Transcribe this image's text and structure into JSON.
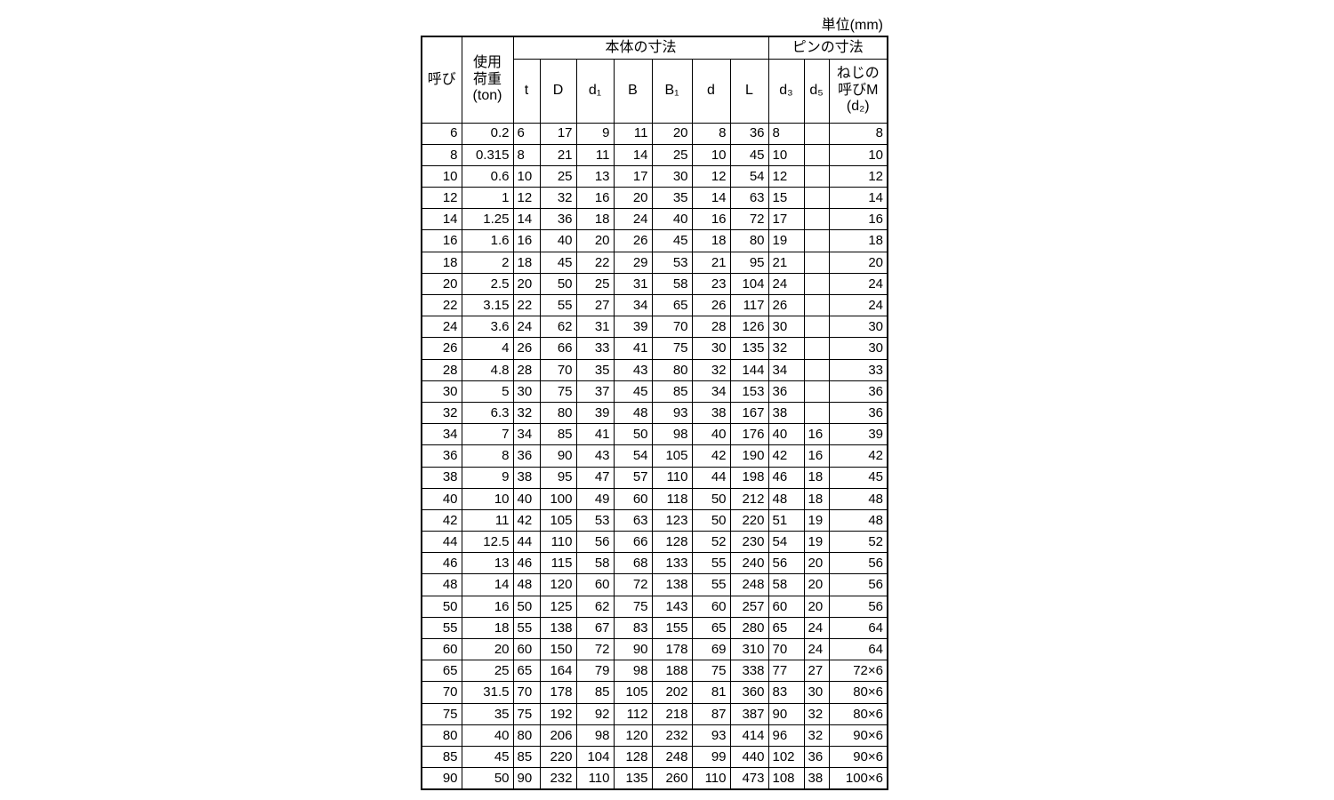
{
  "unit": "単位(mm)",
  "header": {
    "name": "呼び",
    "load": [
      "使用",
      "荷重",
      "(ton)"
    ],
    "body_group": "本体の寸法",
    "pin_group": "ピンの寸法",
    "body_columns": [
      "t",
      "D",
      "d₁",
      "B",
      "B₁",
      "d",
      "L"
    ],
    "pin_columns": [
      [
        "d₃"
      ],
      [
        "d₅"
      ],
      [
        "ねじの",
        "呼びM",
        "(d₂)"
      ]
    ]
  },
  "rows": [
    [
      6,
      0.2,
      6,
      17,
      9,
      11,
      20,
      8,
      36,
      8,
      null,
      8
    ],
    [
      8,
      0.315,
      8,
      21,
      11,
      14,
      25,
      10,
      45,
      10,
      null,
      10
    ],
    [
      10,
      0.6,
      10,
      25,
      13,
      17,
      30,
      12,
      54,
      12,
      null,
      12
    ],
    [
      12,
      1,
      12,
      32,
      16,
      20,
      35,
      14,
      63,
      15,
      null,
      14
    ],
    [
      14,
      1.25,
      14,
      36,
      18,
      24,
      40,
      16,
      72,
      17,
      null,
      16
    ],
    [
      16,
      1.6,
      16,
      40,
      20,
      26,
      45,
      18,
      80,
      19,
      null,
      18
    ],
    [
      18,
      2,
      18,
      45,
      22,
      29,
      53,
      21,
      95,
      21,
      null,
      20
    ],
    [
      20,
      2.5,
      20,
      50,
      25,
      31,
      58,
      23,
      104,
      24,
      null,
      24
    ],
    [
      22,
      3.15,
      22,
      55,
      27,
      34,
      65,
      26,
      117,
      26,
      null,
      24
    ],
    [
      24,
      3.6,
      24,
      62,
      31,
      39,
      70,
      28,
      126,
      30,
      null,
      30
    ],
    [
      26,
      4,
      26,
      66,
      33,
      41,
      75,
      30,
      135,
      32,
      null,
      30
    ],
    [
      28,
      4.8,
      28,
      70,
      35,
      43,
      80,
      32,
      144,
      34,
      null,
      33
    ],
    [
      30,
      5,
      30,
      75,
      37,
      45,
      85,
      34,
      153,
      36,
      null,
      36
    ],
    [
      32,
      6.3,
      32,
      80,
      39,
      48,
      93,
      38,
      167,
      38,
      null,
      36
    ],
    [
      34,
      7,
      34,
      85,
      41,
      50,
      98,
      40,
      176,
      40,
      16,
      39
    ],
    [
      36,
      8,
      36,
      90,
      43,
      54,
      105,
      42,
      190,
      42,
      16,
      42
    ],
    [
      38,
      9,
      38,
      95,
      47,
      57,
      110,
      44,
      198,
      46,
      18,
      45
    ],
    [
      40,
      10,
      40,
      100,
      49,
      60,
      118,
      50,
      212,
      48,
      18,
      48
    ],
    [
      42,
      11,
      42,
      105,
      53,
      63,
      123,
      50,
      220,
      51,
      19,
      48
    ],
    [
      44,
      12.5,
      44,
      110,
      56,
      66,
      128,
      52,
      230,
      54,
      19,
      52
    ],
    [
      46,
      13,
      46,
      115,
      58,
      68,
      133,
      55,
      240,
      56,
      20,
      56
    ],
    [
      48,
      14,
      48,
      120,
      60,
      72,
      138,
      55,
      248,
      58,
      20,
      56
    ],
    [
      50,
      16,
      50,
      125,
      62,
      75,
      143,
      60,
      257,
      60,
      20,
      56
    ],
    [
      55,
      18,
      55,
      138,
      67,
      83,
      155,
      65,
      280,
      65,
      24,
      64
    ],
    [
      60,
      20,
      60,
      150,
      72,
      90,
      178,
      69,
      310,
      70,
      24,
      64
    ],
    [
      65,
      25,
      65,
      164,
      79,
      98,
      188,
      75,
      338,
      77,
      27,
      "72×6"
    ],
    [
      70,
      31.5,
      70,
      178,
      85,
      105,
      202,
      81,
      360,
      83,
      30,
      "80×6"
    ],
    [
      75,
      35,
      75,
      192,
      92,
      112,
      218,
      87,
      387,
      90,
      32,
      "80×6"
    ],
    [
      80,
      40,
      80,
      206,
      98,
      120,
      232,
      93,
      414,
      96,
      32,
      "90×6"
    ],
    [
      85,
      45,
      85,
      220,
      104,
      128,
      248,
      99,
      440,
      102,
      36,
      "90×6"
    ],
    [
      90,
      50,
      90,
      232,
      110,
      135,
      260,
      110,
      473,
      108,
      38,
      "100×6"
    ]
  ]
}
